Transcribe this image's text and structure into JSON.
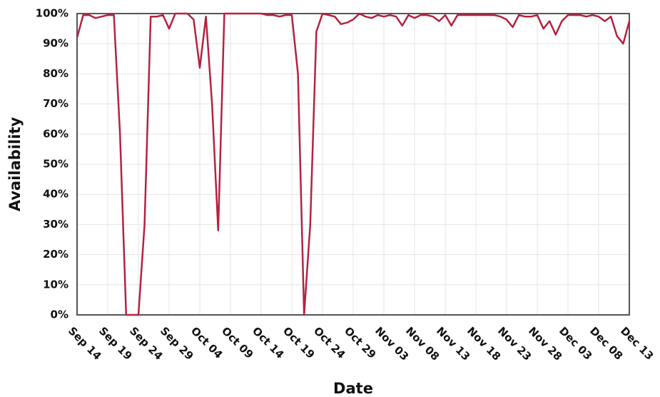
{
  "chart_data": {
    "type": "line",
    "x_label": "Date",
    "y_label": "Availability",
    "categories": [
      "Sep 14",
      null,
      null,
      null,
      null,
      "Sep 19",
      null,
      null,
      null,
      null,
      "Sep 24",
      null,
      null,
      null,
      null,
      "Sep 29",
      null,
      null,
      null,
      null,
      "Oct 04",
      null,
      null,
      null,
      null,
      "Oct 09",
      null,
      null,
      null,
      null,
      "Oct 14",
      null,
      null,
      null,
      null,
      "Oct 19",
      null,
      null,
      null,
      null,
      "Oct 24",
      null,
      null,
      null,
      null,
      "Oct 29",
      null,
      null,
      null,
      null,
      "Nov 03",
      null,
      null,
      null,
      null,
      "Nov 08",
      null,
      null,
      null,
      null,
      "Nov 13",
      null,
      null,
      null,
      null,
      "Nov 18",
      null,
      null,
      null,
      null,
      "Nov 23",
      null,
      null,
      null,
      null,
      "Nov 28",
      null,
      null,
      null,
      null,
      "Dec 03",
      null,
      null,
      null,
      null,
      "Dec 08",
      null,
      null,
      null,
      null,
      "Dec 13"
    ],
    "series": [
      {
        "name": "Availability",
        "color": "#b5223f",
        "values": [
          92,
          99.5,
          99.5,
          98.5,
          99,
          99.5,
          99.5,
          60,
          0,
          0,
          0,
          30,
          99,
          99,
          99.5,
          95,
          100,
          100,
          100,
          98,
          82,
          99,
          70,
          28,
          100,
          100,
          100,
          100,
          100,
          100,
          100,
          99.5,
          99.5,
          99,
          99.5,
          99.5,
          80,
          0,
          30,
          94,
          100,
          99.5,
          99,
          96.5,
          97,
          98,
          100,
          99,
          98.5,
          99.5,
          99,
          99.5,
          99,
          96,
          99.5,
          98.5,
          99.5,
          99.5,
          99,
          97.5,
          99.5,
          96,
          99.5,
          99.5,
          99.5,
          99.5,
          99.5,
          99.5,
          99.5,
          99,
          98,
          95.5,
          99.5,
          99,
          99,
          99.5,
          95,
          97.5,
          93,
          97.5,
          99.5,
          99.5,
          99.5,
          99,
          99.5,
          99,
          97.5,
          99,
          92.5,
          90,
          97.5
        ]
      }
    ],
    "ylim": [
      0,
      100
    ],
    "yticks": [
      {
        "value": 0,
        "label": "0%"
      },
      {
        "value": 10,
        "label": "10%"
      },
      {
        "value": 20,
        "label": "20%"
      },
      {
        "value": 30,
        "label": "30%"
      },
      {
        "value": 40,
        "label": "40%"
      },
      {
        "value": 50,
        "label": "50%"
      },
      {
        "value": 60,
        "label": "60%"
      },
      {
        "value": 70,
        "label": "70%"
      },
      {
        "value": 80,
        "label": "80%"
      },
      {
        "value": 90,
        "label": "90%"
      },
      {
        "value": 100,
        "label": "100%"
      }
    ],
    "grid": true
  }
}
